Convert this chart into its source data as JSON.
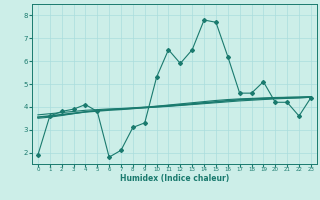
{
  "xlabel": "Humidex (Indice chaleur)",
  "ylabel": "",
  "bg_color": "#cceee8",
  "line_color": "#1a7a6e",
  "grid_color": "#aadddd",
  "xlim": [
    -0.5,
    23.5
  ],
  "ylim": [
    1.5,
    8.5
  ],
  "xticks": [
    0,
    1,
    2,
    3,
    4,
    5,
    6,
    7,
    8,
    9,
    10,
    11,
    12,
    13,
    14,
    15,
    16,
    17,
    18,
    19,
    20,
    21,
    22,
    23
  ],
  "yticks": [
    2,
    3,
    4,
    5,
    6,
    7,
    8
  ],
  "series": [
    {
      "x": [
        0,
        1,
        2,
        3,
        4,
        5,
        6,
        7,
        8,
        9,
        10,
        11,
        12,
        13,
        14,
        15,
        16,
        17,
        18,
        19,
        20,
        21,
        22,
        23
      ],
      "y": [
        1.9,
        3.6,
        3.8,
        3.9,
        4.1,
        3.8,
        1.8,
        2.1,
        3.1,
        3.3,
        5.3,
        6.5,
        5.9,
        6.5,
        7.8,
        7.7,
        6.2,
        4.6,
        4.6,
        5.1,
        4.2,
        4.2,
        3.6,
        4.4
      ],
      "marker": "D",
      "markersize": 2.0,
      "linewidth": 0.8
    },
    {
      "x": [
        0,
        1,
        2,
        3,
        4,
        5,
        6,
        7,
        8,
        9,
        10,
        11,
        12,
        13,
        14,
        15,
        16,
        17,
        18,
        19,
        20,
        21,
        22,
        23
      ],
      "y": [
        3.5,
        3.55,
        3.62,
        3.7,
        3.78,
        3.84,
        3.88,
        3.9,
        3.93,
        3.96,
        3.99,
        4.02,
        4.06,
        4.1,
        4.14,
        4.18,
        4.22,
        4.26,
        4.29,
        4.32,
        4.35,
        4.37,
        4.39,
        4.42
      ],
      "marker": null,
      "markersize": 0,
      "linewidth": 0.8
    },
    {
      "x": [
        0,
        1,
        2,
        3,
        4,
        5,
        6,
        7,
        8,
        9,
        10,
        11,
        12,
        13,
        14,
        15,
        16,
        17,
        18,
        19,
        20,
        21,
        22,
        23
      ],
      "y": [
        3.65,
        3.7,
        3.75,
        3.8,
        3.85,
        3.88,
        3.91,
        3.93,
        3.96,
        3.99,
        4.03,
        4.08,
        4.13,
        4.18,
        4.23,
        4.28,
        4.32,
        4.35,
        4.37,
        4.39,
        4.41,
        4.42,
        4.43,
        4.45
      ],
      "marker": null,
      "markersize": 0,
      "linewidth": 0.8
    },
    {
      "x": [
        0,
        1,
        2,
        3,
        4,
        5,
        6,
        7,
        8,
        9,
        10,
        11,
        12,
        13,
        14,
        15,
        16,
        17,
        18,
        19,
        20,
        21,
        22,
        23
      ],
      "y": [
        3.55,
        3.6,
        3.66,
        3.72,
        3.78,
        3.82,
        3.86,
        3.89,
        3.93,
        3.97,
        4.01,
        4.05,
        4.09,
        4.13,
        4.18,
        4.22,
        4.27,
        4.31,
        4.34,
        4.36,
        4.38,
        4.4,
        4.41,
        4.43
      ],
      "marker": null,
      "markersize": 0,
      "linewidth": 1.2
    }
  ]
}
